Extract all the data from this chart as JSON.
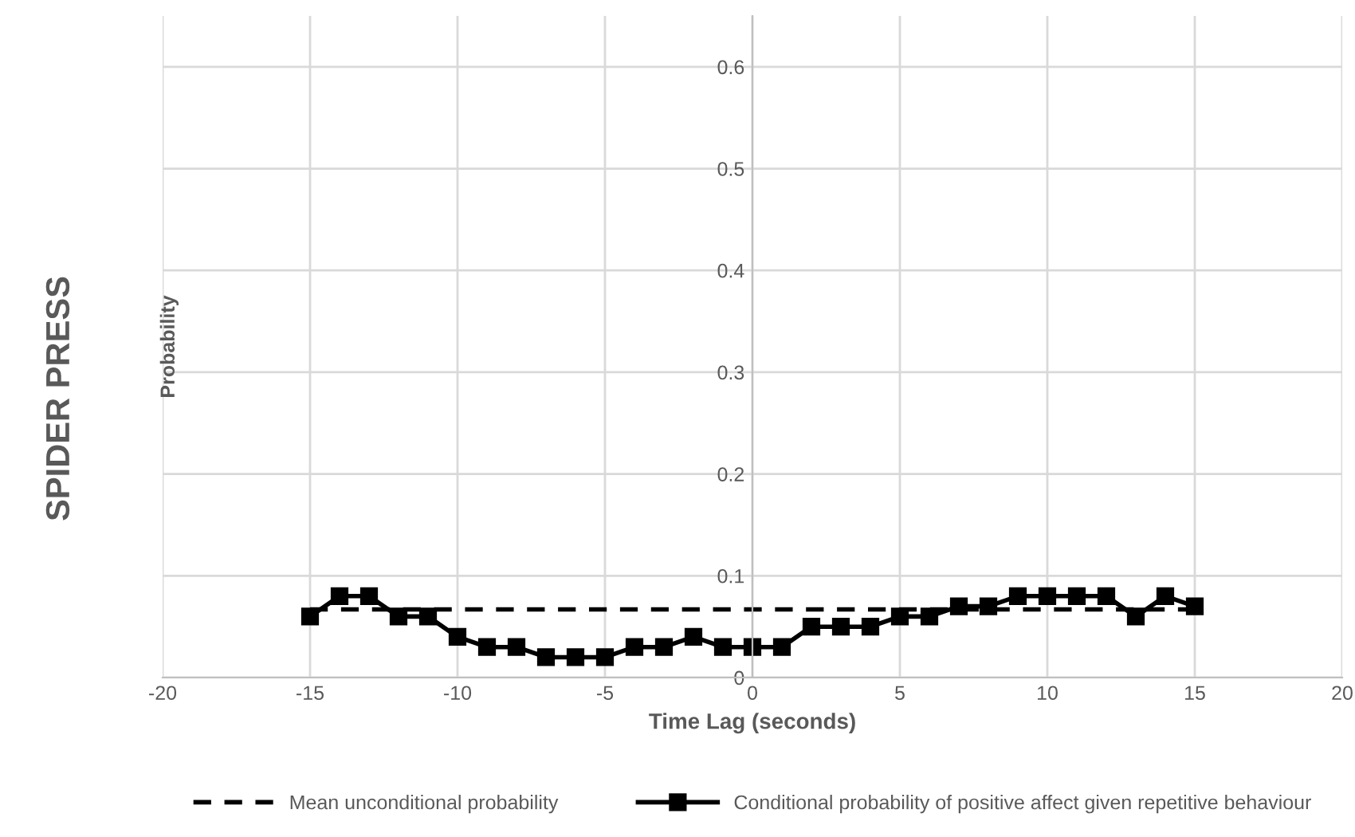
{
  "chart_data": {
    "type": "line",
    "title": "SPIDER PRESS",
    "xlabel": "Time Lag (seconds)",
    "ylabel": "Probability",
    "xlim": [
      -20,
      20
    ],
    "xticks": [
      -20,
      -15,
      -10,
      -5,
      0,
      5,
      10,
      15,
      20
    ],
    "ylim": [
      0,
      0.65
    ],
    "yticks": [
      0,
      0.1,
      0.2,
      0.3,
      0.4,
      0.5,
      0.6
    ],
    "grid": true,
    "legend": "bottom",
    "series": [
      {
        "name": "Mean unconditional probability",
        "color": "#000000",
        "x": [
          -15,
          15
        ],
        "values": [
          0.067,
          0.067
        ],
        "line_style": "dashed",
        "marker": "none"
      },
      {
        "name": "Conditional probability of positive affect given repetitive behaviour",
        "color": "#000000",
        "x": [
          -15,
          -14,
          -13,
          -12,
          -11,
          -10,
          -9,
          -8,
          -7,
          -6,
          -5,
          -4,
          -3,
          -2,
          -1,
          0,
          1,
          2,
          3,
          4,
          5,
          6,
          7,
          8,
          9,
          10,
          11,
          12,
          13,
          14,
          15
        ],
        "values": [
          0.06,
          0.08,
          0.08,
          0.06,
          0.06,
          0.04,
          0.03,
          0.03,
          0.02,
          0.02,
          0.02,
          0.03,
          0.03,
          0.04,
          0.03,
          0.03,
          0.03,
          0.05,
          0.05,
          0.05,
          0.06,
          0.06,
          0.07,
          0.07,
          0.08,
          0.08,
          0.08,
          0.08,
          0.06,
          0.08,
          0.07
        ],
        "line_style": "solid",
        "marker": "square"
      }
    ]
  }
}
